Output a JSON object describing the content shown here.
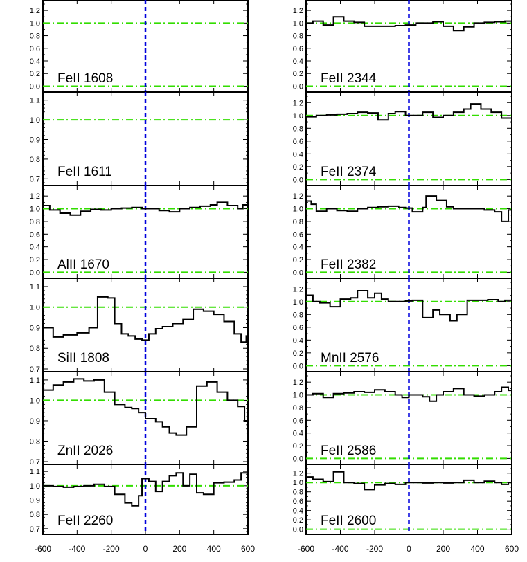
{
  "chart_data": {
    "type": "line",
    "layout": "stacked velocity plots, 2 columns x 6 rows, shared x axis",
    "x_ticks": [
      -600,
      -400,
      -200,
      0,
      200,
      400,
      600
    ],
    "xlim": [
      -600,
      600
    ],
    "reference_lines": {
      "zero_velocity": {
        "x": 0,
        "style": "dashed",
        "color": "#0000dd"
      },
      "level_lines_color": "#33dd00",
      "step_color": "#000000"
    },
    "panels": [
      {
        "label": "FeII 1608",
        "ylim": [
          -0.05,
          1.3
        ],
        "yticks": [
          "0.0",
          "0.2",
          "0.4",
          "0.6",
          "0.8",
          "1.0",
          "1.2"
        ],
        "levels": [
          1.0,
          0.0
        ],
        "steps": []
      },
      {
        "label": "FeII 1611",
        "ylim": [
          0.68,
          1.12
        ],
        "yticks": [
          "0.7",
          "0.8",
          "0.9",
          "1.0",
          "1.1"
        ],
        "levels": [
          1.0
        ],
        "steps": []
      },
      {
        "label": "AlII 1670",
        "ylim": [
          -0.05,
          1.3
        ],
        "yticks": [
          "0.0",
          "0.2",
          "0.4",
          "0.6",
          "0.8",
          "1.0",
          "1.2"
        ],
        "levels": [
          1.0,
          0.0
        ],
        "steps": [
          [
            -600,
            1.05
          ],
          [
            -560,
            0.98
          ],
          [
            -500,
            0.93
          ],
          [
            -440,
            0.9
          ],
          [
            -380,
            0.96
          ],
          [
            -320,
            0.99
          ],
          [
            -260,
            0.98
          ],
          [
            -200,
            1.0
          ],
          [
            -140,
            1.01
          ],
          [
            -80,
            1.02
          ],
          [
            -20,
            1.0
          ],
          [
            40,
            1.0
          ],
          [
            80,
            0.97
          ],
          [
            140,
            0.95
          ],
          [
            200,
            1.0
          ],
          [
            260,
            1.02
          ],
          [
            320,
            1.04
          ],
          [
            380,
            1.06
          ],
          [
            420,
            1.1
          ],
          [
            480,
            1.05
          ],
          [
            540,
            1.0
          ],
          [
            570,
            1.06
          ],
          [
            600,
            1.04
          ]
        ]
      },
      {
        "label": "SiII 1808",
        "ylim": [
          0.7,
          1.12
        ],
        "yticks": [
          "0.7",
          "0.8",
          "0.9",
          "1.0",
          "1.1"
        ],
        "levels": [
          1.0
        ],
        "steps": [
          [
            -600,
            0.9
          ],
          [
            -540,
            0.855
          ],
          [
            -480,
            0.865
          ],
          [
            -400,
            0.875
          ],
          [
            -330,
            0.9
          ],
          [
            -280,
            1.05
          ],
          [
            -220,
            1.045
          ],
          [
            -180,
            0.92
          ],
          [
            -140,
            0.87
          ],
          [
            -100,
            0.86
          ],
          [
            -60,
            0.845
          ],
          [
            -20,
            0.84
          ],
          [
            20,
            0.87
          ],
          [
            60,
            0.895
          ],
          [
            100,
            0.905
          ],
          [
            160,
            0.92
          ],
          [
            220,
            0.94
          ],
          [
            280,
            0.99
          ],
          [
            340,
            0.98
          ],
          [
            400,
            0.965
          ],
          [
            460,
            0.93
          ],
          [
            520,
            0.87
          ],
          [
            560,
            0.83
          ],
          [
            590,
            0.86
          ],
          [
            600,
            0.86
          ]
        ]
      },
      {
        "label": "ZnII 2026",
        "ylim": [
          0.7,
          1.12
        ],
        "yticks": [
          "0.7",
          "0.8",
          "0.9",
          "1.0",
          "1.1"
        ],
        "levels": [
          1.0
        ],
        "steps": [
          [
            -600,
            1.05
          ],
          [
            -540,
            1.075
          ],
          [
            -480,
            1.09
          ],
          [
            -420,
            1.105
          ],
          [
            -360,
            1.095
          ],
          [
            -300,
            1.1
          ],
          [
            -240,
            1.04
          ],
          [
            -180,
            0.98
          ],
          [
            -120,
            0.965
          ],
          [
            -80,
            0.96
          ],
          [
            -40,
            0.94
          ],
          [
            0,
            0.91
          ],
          [
            60,
            0.895
          ],
          [
            100,
            0.87
          ],
          [
            140,
            0.84
          ],
          [
            180,
            0.83
          ],
          [
            240,
            0.87
          ],
          [
            300,
            1.07
          ],
          [
            360,
            1.09
          ],
          [
            420,
            1.04
          ],
          [
            480,
            1.0
          ],
          [
            540,
            0.97
          ],
          [
            580,
            0.9
          ],
          [
            600,
            0.93
          ]
        ]
      },
      {
        "label": "FeII 2260",
        "ylim": [
          0.68,
          1.12
        ],
        "yticks": [
          "0.7",
          "0.8",
          "0.9",
          "1.0",
          "1.1"
        ],
        "levels": [
          1.0
        ],
        "steps": [
          [
            -600,
            1.0
          ],
          [
            -540,
            0.995
          ],
          [
            -480,
            0.99
          ],
          [
            -420,
            0.995
          ],
          [
            -360,
            1.0
          ],
          [
            -300,
            1.01
          ],
          [
            -240,
            0.995
          ],
          [
            -180,
            0.94
          ],
          [
            -120,
            0.88
          ],
          [
            -80,
            0.86
          ],
          [
            -40,
            0.93
          ],
          [
            -20,
            1.05
          ],
          [
            20,
            1.03
          ],
          [
            60,
            0.96
          ],
          [
            100,
            1.03
          ],
          [
            140,
            1.07
          ],
          [
            180,
            1.09
          ],
          [
            220,
            1.0
          ],
          [
            260,
            1.08
          ],
          [
            300,
            0.95
          ],
          [
            340,
            0.94
          ],
          [
            400,
            1.02
          ],
          [
            460,
            1.025
          ],
          [
            520,
            1.04
          ],
          [
            560,
            1.09
          ],
          [
            600,
            1.08
          ]
        ]
      },
      {
        "label": "FeII 2344",
        "ylim": [
          -0.05,
          1.3
        ],
        "yticks": [
          "0.0",
          "0.2",
          "0.4",
          "0.6",
          "0.8",
          "1.0",
          "1.2"
        ],
        "levels": [
          1.0,
          0.0
        ],
        "steps": [
          [
            -600,
            1.0
          ],
          [
            -560,
            1.03
          ],
          [
            -500,
            0.97
          ],
          [
            -440,
            1.1
          ],
          [
            -380,
            1.03
          ],
          [
            -320,
            1.01
          ],
          [
            -260,
            0.95
          ],
          [
            -200,
            0.95
          ],
          [
            -140,
            0.95
          ],
          [
            -80,
            0.96
          ],
          [
            -20,
            0.97
          ],
          [
            40,
            1.0
          ],
          [
            80,
            1.0
          ],
          [
            140,
            1.02
          ],
          [
            200,
            0.95
          ],
          [
            260,
            0.88
          ],
          [
            320,
            0.94
          ],
          [
            380,
            1.0
          ],
          [
            440,
            1.01
          ],
          [
            500,
            1.02
          ],
          [
            560,
            1.03
          ],
          [
            600,
            1.0
          ]
        ]
      },
      {
        "label": "FeII 2374",
        "ylim": [
          -0.05,
          1.3
        ],
        "yticks": [
          "0.0",
          "0.2",
          "0.4",
          "0.6",
          "0.8",
          "1.0",
          "1.2"
        ],
        "levels": [
          1.0,
          0.0
        ],
        "steps": [
          [
            -600,
            0.98
          ],
          [
            -540,
            1.0
          ],
          [
            -480,
            1.01
          ],
          [
            -420,
            1.02
          ],
          [
            -360,
            1.03
          ],
          [
            -300,
            1.05
          ],
          [
            -240,
            1.04
          ],
          [
            -180,
            0.93
          ],
          [
            -120,
            1.03
          ],
          [
            -80,
            1.06
          ],
          [
            -20,
            1.0
          ],
          [
            40,
            1.0
          ],
          [
            80,
            1.05
          ],
          [
            140,
            0.97
          ],
          [
            200,
            1.0
          ],
          [
            260,
            1.05
          ],
          [
            320,
            1.1
          ],
          [
            360,
            1.18
          ],
          [
            420,
            1.1
          ],
          [
            480,
            1.05
          ],
          [
            540,
            0.96
          ],
          [
            600,
            0.97
          ]
        ]
      },
      {
        "label": "FeII 2382",
        "ylim": [
          -0.05,
          1.3
        ],
        "yticks": [
          "0.0",
          "0.2",
          "0.4",
          "0.6",
          "0.8",
          "1.0",
          "1.2"
        ],
        "levels": [
          1.0,
          0.0
        ],
        "steps": [
          [
            -600,
            1.12
          ],
          [
            -570,
            1.07
          ],
          [
            -540,
            0.96
          ],
          [
            -480,
            1.0
          ],
          [
            -420,
            0.97
          ],
          [
            -360,
            0.96
          ],
          [
            -300,
            1.0
          ],
          [
            -240,
            1.02
          ],
          [
            -180,
            1.03
          ],
          [
            -120,
            1.04
          ],
          [
            -60,
            1.02
          ],
          [
            -20,
            1.01
          ],
          [
            20,
            0.95
          ],
          [
            80,
            1.02
          ],
          [
            100,
            1.2
          ],
          [
            160,
            1.13
          ],
          [
            220,
            1.03
          ],
          [
            260,
            1.0
          ],
          [
            320,
            1.0
          ],
          [
            380,
            1.0
          ],
          [
            440,
            0.98
          ],
          [
            500,
            0.95
          ],
          [
            540,
            0.8
          ],
          [
            580,
            0.98
          ],
          [
            600,
            0.98
          ]
        ]
      },
      {
        "label": "MnII 2576",
        "ylim": [
          -0.05,
          1.3
        ],
        "yticks": [
          "0.0",
          "0.2",
          "0.4",
          "0.6",
          "0.8",
          "1.0",
          "1.2"
        ],
        "levels": [
          1.0,
          0.0
        ],
        "steps": [
          [
            -600,
            1.1
          ],
          [
            -560,
            1.0
          ],
          [
            -520,
            0.98
          ],
          [
            -460,
            0.92
          ],
          [
            -400,
            1.04
          ],
          [
            -340,
            1.06
          ],
          [
            -300,
            1.17
          ],
          [
            -240,
            1.06
          ],
          [
            -200,
            1.13
          ],
          [
            -160,
            1.04
          ],
          [
            -120,
            1.0
          ],
          [
            -80,
            1.0
          ],
          [
            -20,
            1.01
          ],
          [
            20,
            1.02
          ],
          [
            60,
            1.02
          ],
          [
            80,
            0.75
          ],
          [
            140,
            0.87
          ],
          [
            180,
            0.8
          ],
          [
            240,
            0.7
          ],
          [
            280,
            0.8
          ],
          [
            340,
            1.02
          ],
          [
            400,
            1.02
          ],
          [
            460,
            1.03
          ],
          [
            520,
            1.0
          ],
          [
            560,
            1.02
          ],
          [
            600,
            0.97
          ]
        ]
      },
      {
        "label": "FeII 2586",
        "ylim": [
          -0.05,
          1.3
        ],
        "yticks": [
          "0.0",
          "0.2",
          "0.4",
          "0.6",
          "0.8",
          "1.0",
          "1.2"
        ],
        "levels": [
          1.0,
          0.0
        ],
        "steps": [
          [
            -600,
            1.0
          ],
          [
            -560,
            1.02
          ],
          [
            -500,
            0.96
          ],
          [
            -440,
            1.02
          ],
          [
            -380,
            1.03
          ],
          [
            -320,
            1.05
          ],
          [
            -260,
            1.04
          ],
          [
            -200,
            1.08
          ],
          [
            -140,
            1.05
          ],
          [
            -80,
            1.0
          ],
          [
            -40,
            0.96
          ],
          [
            0,
            1.0
          ],
          [
            40,
            1.0
          ],
          [
            80,
            0.97
          ],
          [
            120,
            0.9
          ],
          [
            160,
            1.0
          ],
          [
            200,
            1.05
          ],
          [
            260,
            1.1
          ],
          [
            320,
            1.0
          ],
          [
            380,
            0.98
          ],
          [
            440,
            1.0
          ],
          [
            500,
            1.05
          ],
          [
            540,
            1.12
          ],
          [
            580,
            1.07
          ],
          [
            600,
            1.07
          ]
        ]
      },
      {
        "label": "FeII 2600",
        "ylim": [
          -0.05,
          1.3
        ],
        "yticks": [
          "0.0",
          "0.2",
          "0.4",
          "0.6",
          "0.8",
          "1.0",
          "1.2"
        ],
        "levels": [
          1.0,
          0.0
        ],
        "steps": [
          [
            -600,
            1.12
          ],
          [
            -560,
            1.07
          ],
          [
            -500,
            1.02
          ],
          [
            -440,
            1.23
          ],
          [
            -380,
            1.0
          ],
          [
            -320,
            0.98
          ],
          [
            -260,
            0.85
          ],
          [
            -200,
            0.95
          ],
          [
            -140,
            0.98
          ],
          [
            -80,
            0.96
          ],
          [
            -20,
            1.0
          ],
          [
            40,
            1.0
          ],
          [
            80,
            0.99
          ],
          [
            140,
            1.0
          ],
          [
            200,
            0.99
          ],
          [
            260,
            1.0
          ],
          [
            320,
            1.05
          ],
          [
            380,
            1.0
          ],
          [
            440,
            1.03
          ],
          [
            500,
            1.0
          ],
          [
            540,
            0.96
          ],
          [
            580,
            1.0
          ],
          [
            600,
            1.1
          ]
        ]
      }
    ]
  }
}
